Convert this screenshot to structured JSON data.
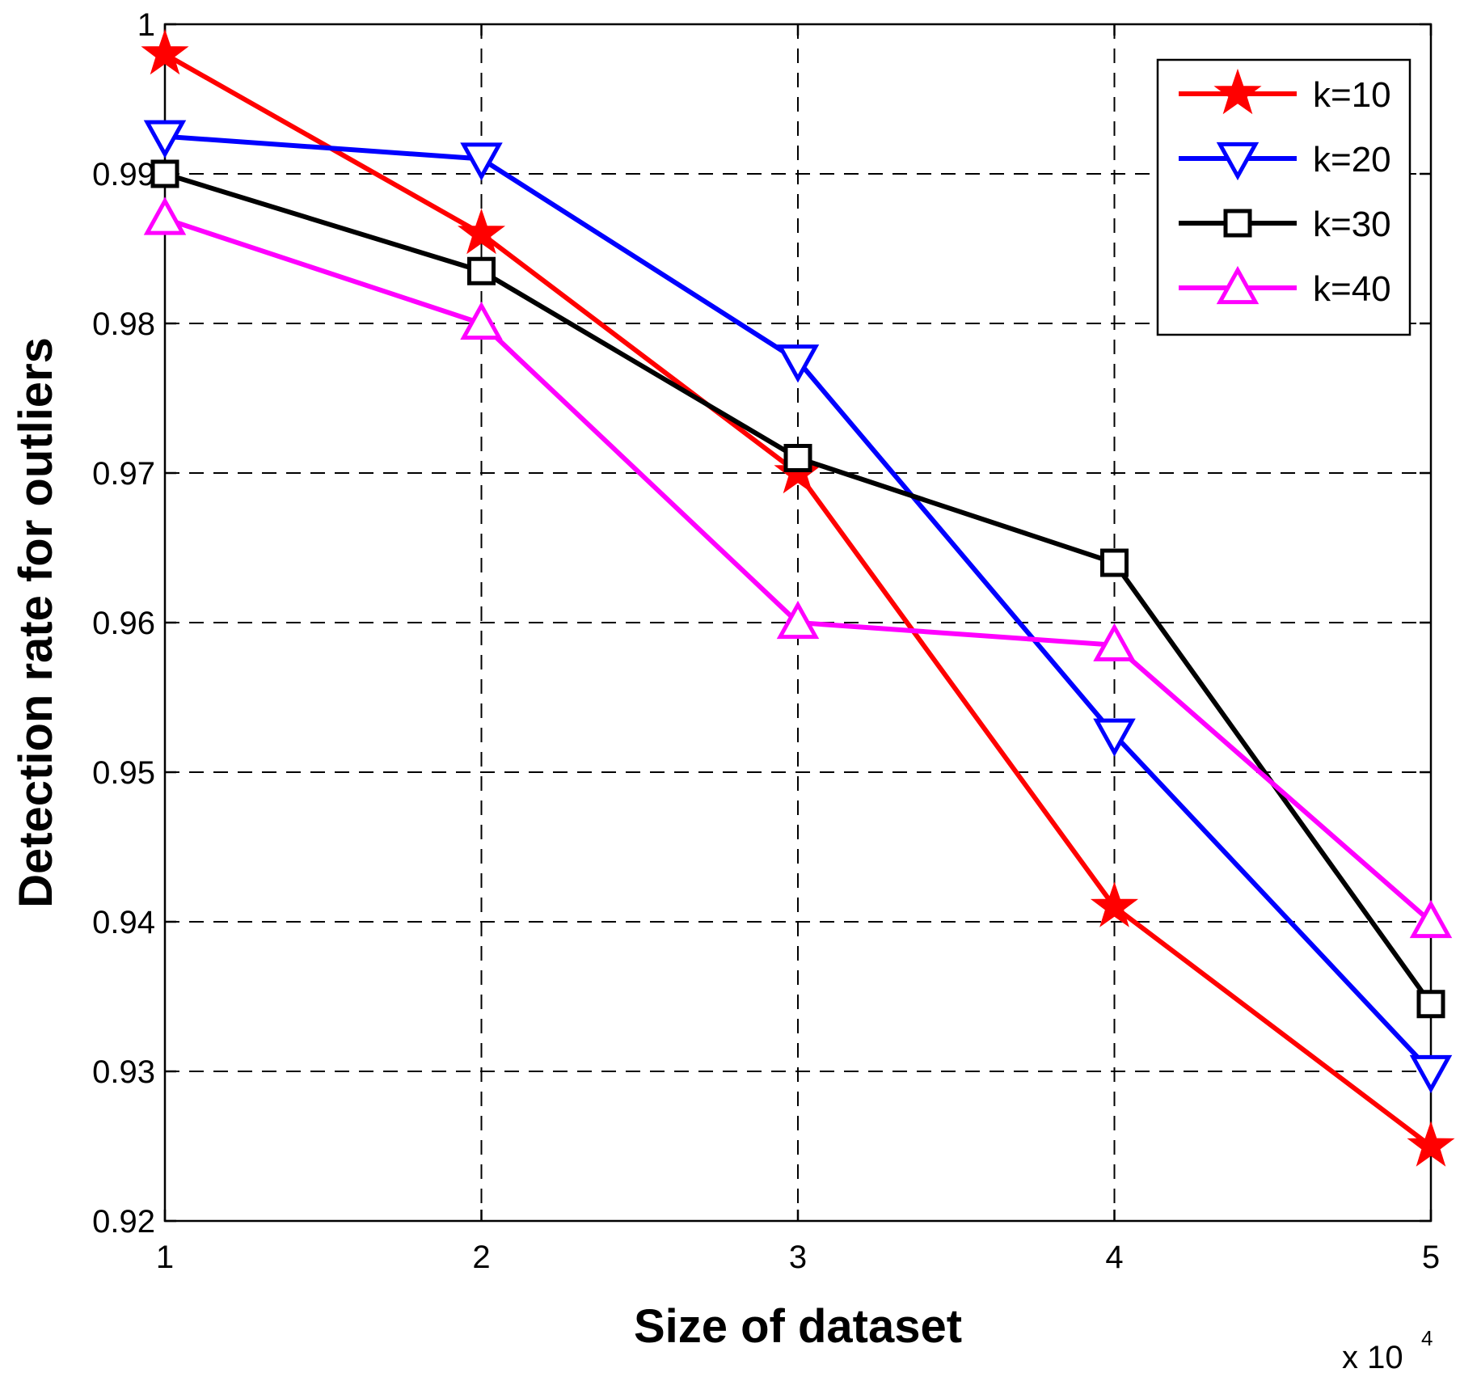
{
  "chart_data": {
    "type": "line",
    "title": "",
    "xlabel": "Size of dataset",
    "ylabel": "Detection rate for outliers",
    "x_exponent_label": "x 10",
    "x_exponent_power": "4",
    "x": [
      1,
      2,
      3,
      4,
      5
    ],
    "xlim": [
      1,
      5
    ],
    "ylim": [
      0.92,
      1.0
    ],
    "xticks": [
      "1",
      "2",
      "3",
      "4",
      "5"
    ],
    "yticks": [
      "0.92",
      "0.93",
      "0.94",
      "0.95",
      "0.96",
      "0.97",
      "0.98",
      "0.99",
      "1"
    ],
    "grid": true,
    "legend_position": "top-right",
    "series": [
      {
        "name": "k=10",
        "color": "#ff0000",
        "marker": "star",
        "values": [
          0.998,
          0.986,
          0.97,
          0.941,
          0.925
        ]
      },
      {
        "name": "k=20",
        "color": "#0000ff",
        "marker": "triangle-down",
        "values": [
          0.9925,
          0.991,
          0.9775,
          0.9525,
          0.93
        ]
      },
      {
        "name": "k=30",
        "color": "#000000",
        "marker": "square",
        "values": [
          0.99,
          0.9835,
          0.971,
          0.964,
          0.9345
        ]
      },
      {
        "name": "k=40",
        "color": "#ff00ff",
        "marker": "triangle-up",
        "values": [
          0.987,
          0.98,
          0.96,
          0.9585,
          0.94
        ]
      }
    ]
  }
}
